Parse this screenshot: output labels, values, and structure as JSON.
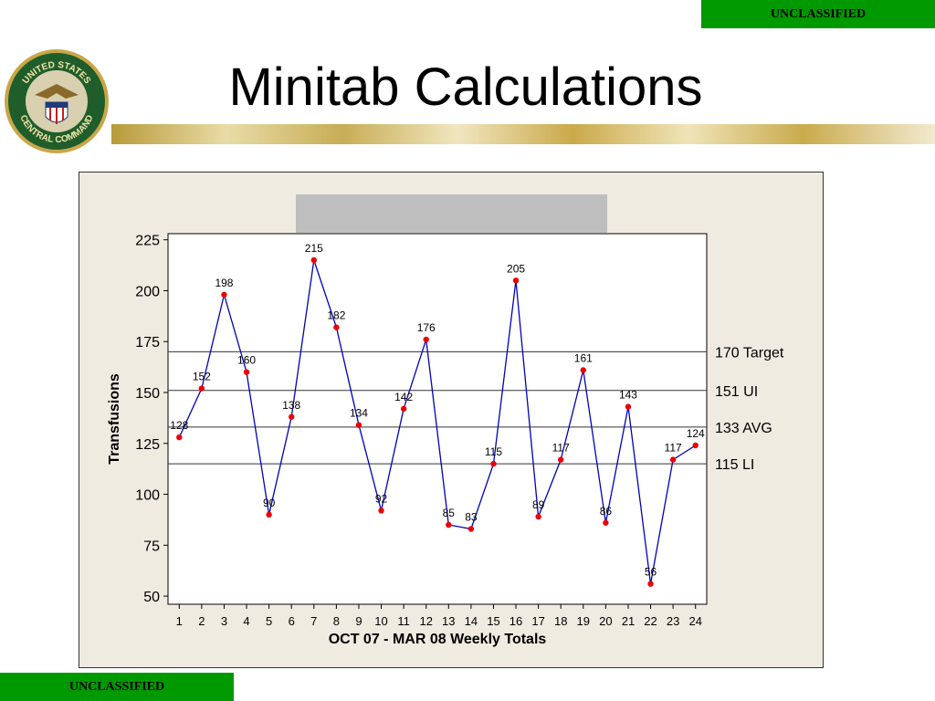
{
  "banner": {
    "top": "UNCLASSIFIED",
    "bottom": "UNCLASSIFIED"
  },
  "title": "Minitab Calculations",
  "seal": {
    "ring_text_top": "UNITED STATES",
    "ring_text_bottom": "CENTRAL COMMAND"
  },
  "chart_data": {
    "type": "line",
    "title": "",
    "xlabel": "OCT 07 - MAR 08  Weekly Totals",
    "ylabel": "Transfusions",
    "x": [
      1,
      2,
      3,
      4,
      5,
      6,
      7,
      8,
      9,
      10,
      11,
      12,
      13,
      14,
      15,
      16,
      17,
      18,
      19,
      20,
      21,
      22,
      23,
      24
    ],
    "values": [
      128,
      152,
      198,
      160,
      90,
      138,
      215,
      182,
      134,
      92,
      142,
      176,
      85,
      83,
      115,
      205,
      89,
      117,
      161,
      86,
      143,
      56,
      117,
      124
    ],
    "point_labels": [
      "128",
      "152",
      "198",
      "160",
      "90",
      "138",
      "215",
      "182",
      "134",
      "92",
      "142",
      "176",
      "85",
      "83",
      "115",
      "205",
      "89",
      "117",
      "161",
      "86",
      "143",
      "56",
      "117",
      "124"
    ],
    "yticks": [
      50,
      75,
      100,
      125,
      150,
      175,
      200,
      225
    ],
    "ylim": [
      46,
      228
    ],
    "xlim": [
      0.5,
      24.5
    ],
    "reference_lines": [
      {
        "value": 170,
        "label": "170 Target"
      },
      {
        "value": 151,
        "label": "151 UI"
      },
      {
        "value": 133,
        "label": "133 AVG"
      },
      {
        "value": 115,
        "label": "115 LI"
      }
    ],
    "line_color": "#0000bb",
    "marker_color": "#ee0000",
    "grid": false
  }
}
